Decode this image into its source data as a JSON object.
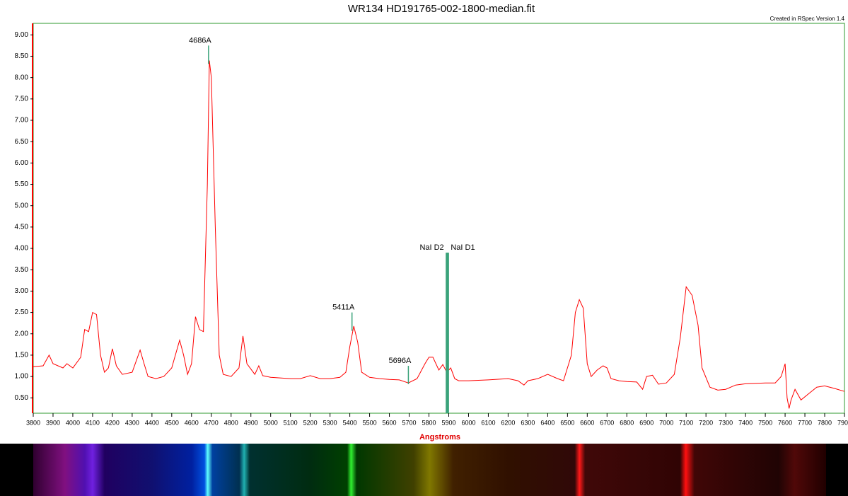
{
  "chart_data": {
    "type": "line",
    "title": "WR134 HD191765-002-1800-median.fit",
    "subtitle": "Created in RSpec Version 1.4",
    "x_label": "Angstroms",
    "xlim": [
      3800,
      7900
    ],
    "ylim": [
      0.14,
      9.27
    ],
    "xticks": [
      3800,
      3900,
      4000,
      4100,
      4200,
      4300,
      4400,
      4500,
      4600,
      4700,
      4800,
      4900,
      5000,
      5100,
      5200,
      5300,
      5400,
      5500,
      5600,
      5700,
      5800,
      5900,
      6000,
      6100,
      6200,
      6300,
      6400,
      6500,
      6600,
      6700,
      6800,
      6900,
      7000,
      7100,
      7200,
      7300,
      7400,
      7500,
      7600,
      7700,
      7800,
      7900
    ],
    "yticks": [
      {
        "value": 0.5,
        "label": "0.50"
      },
      {
        "value": 1,
        "label": "1.00"
      },
      {
        "value": 1.5,
        "label": "1.50"
      },
      {
        "value": 2,
        "label": "2.00"
      },
      {
        "value": 2.5,
        "label": "2.50"
      },
      {
        "value": 3,
        "label": "3.00"
      },
      {
        "value": 3.5,
        "label": "3.50"
      },
      {
        "value": 4,
        "label": "4.00"
      },
      {
        "value": 4.5,
        "label": "4.50"
      },
      {
        "value": 5,
        "label": "5.00"
      },
      {
        "value": 5.5,
        "label": "5.50"
      },
      {
        "value": 6,
        "label": "6.00"
      },
      {
        "value": 6.5,
        "label": "6.50"
      },
      {
        "value": 7,
        "label": "7.00"
      },
      {
        "value": 7.5,
        "label": "7.50"
      },
      {
        "value": 8,
        "label": "8.00"
      },
      {
        "value": 8.5,
        "label": "8.50"
      },
      {
        "value": 9,
        "label": "9.00"
      }
    ],
    "series": [
      {
        "name": "spectrum",
        "color": "#ff0000",
        "x": [
          3800,
          3850,
          3880,
          3900,
          3950,
          3970,
          4000,
          4040,
          4060,
          4080,
          4100,
          4120,
          4140,
          4160,
          4180,
          4200,
          4220,
          4250,
          4300,
          4340,
          4360,
          4380,
          4420,
          4460,
          4500,
          4540,
          4560,
          4580,
          4600,
          4620,
          4640,
          4660,
          4680,
          4690,
          4700,
          4720,
          4740,
          4760,
          4800,
          4840,
          4860,
          4880,
          4920,
          4940,
          4960,
          5000,
          5100,
          5150,
          5200,
          5250,
          5300,
          5350,
          5380,
          5400,
          5420,
          5440,
          5460,
          5500,
          5550,
          5600,
          5650,
          5696,
          5740,
          5780,
          5800,
          5820,
          5850,
          5870,
          5890,
          5910,
          5930,
          5950,
          6000,
          6100,
          6200,
          6250,
          6280,
          6300,
          6350,
          6400,
          6450,
          6480,
          6520,
          6540,
          6560,
          6580,
          6600,
          6620,
          6650,
          6680,
          6700,
          6720,
          6760,
          6800,
          6850,
          6880,
          6900,
          6930,
          6960,
          7000,
          7040,
          7070,
          7100,
          7130,
          7160,
          7180,
          7220,
          7260,
          7300,
          7350,
          7400,
          7500,
          7550,
          7580,
          7600,
          7610,
          7620,
          7630,
          7650,
          7680,
          7720,
          7760,
          7800,
          7850,
          7900
        ],
        "values": [
          1.23,
          1.25,
          1.5,
          1.3,
          1.2,
          1.3,
          1.2,
          1.45,
          2.1,
          2.05,
          2.5,
          2.45,
          1.5,
          1.1,
          1.2,
          1.65,
          1.25,
          1.05,
          1.1,
          1.62,
          1.3,
          1.0,
          0.95,
          1.0,
          1.2,
          1.85,
          1.5,
          1.05,
          1.3,
          2.4,
          2.1,
          2.05,
          5.5,
          8.4,
          8.0,
          4.5,
          1.5,
          1.05,
          1.0,
          1.2,
          1.95,
          1.3,
          1.05,
          1.25,
          1.02,
          0.98,
          0.95,
          0.95,
          1.02,
          0.95,
          0.95,
          0.98,
          1.1,
          1.7,
          2.18,
          1.8,
          1.1,
          0.98,
          0.95,
          0.93,
          0.92,
          0.85,
          0.95,
          1.3,
          1.45,
          1.45,
          1.15,
          1.28,
          1.1,
          1.2,
          0.95,
          0.9,
          0.9,
          0.92,
          0.95,
          0.9,
          0.8,
          0.9,
          0.95,
          1.05,
          0.95,
          0.9,
          1.5,
          2.5,
          2.8,
          2.6,
          1.3,
          1.0,
          1.15,
          1.25,
          1.2,
          0.95,
          0.9,
          0.88,
          0.87,
          0.7,
          1.0,
          1.03,
          0.82,
          0.85,
          1.05,
          1.9,
          3.1,
          2.9,
          2.2,
          1.2,
          0.75,
          0.68,
          0.7,
          0.8,
          0.83,
          0.85,
          0.85,
          1.0,
          1.3,
          0.5,
          0.25,
          0.45,
          0.7,
          0.45,
          0.6,
          0.75,
          0.78,
          0.72,
          0.65
        ]
      }
    ],
    "annotations": [
      {
        "text": "4686A",
        "x": 4686,
        "y": 8.75
      },
      {
        "text": "5411A",
        "x": 5411,
        "y": 2.5
      },
      {
        "text": "5696A",
        "x": 5696,
        "y": 1.25
      },
      {
        "text": "NaI D2",
        "x": 5890,
        "y": 3.9
      },
      {
        "text": "NaI D1",
        "x": 5896,
        "y": 3.9
      }
    ],
    "grid": false,
    "frame_color": "#2e9a2e",
    "marker_color": "#3aa37a"
  }
}
